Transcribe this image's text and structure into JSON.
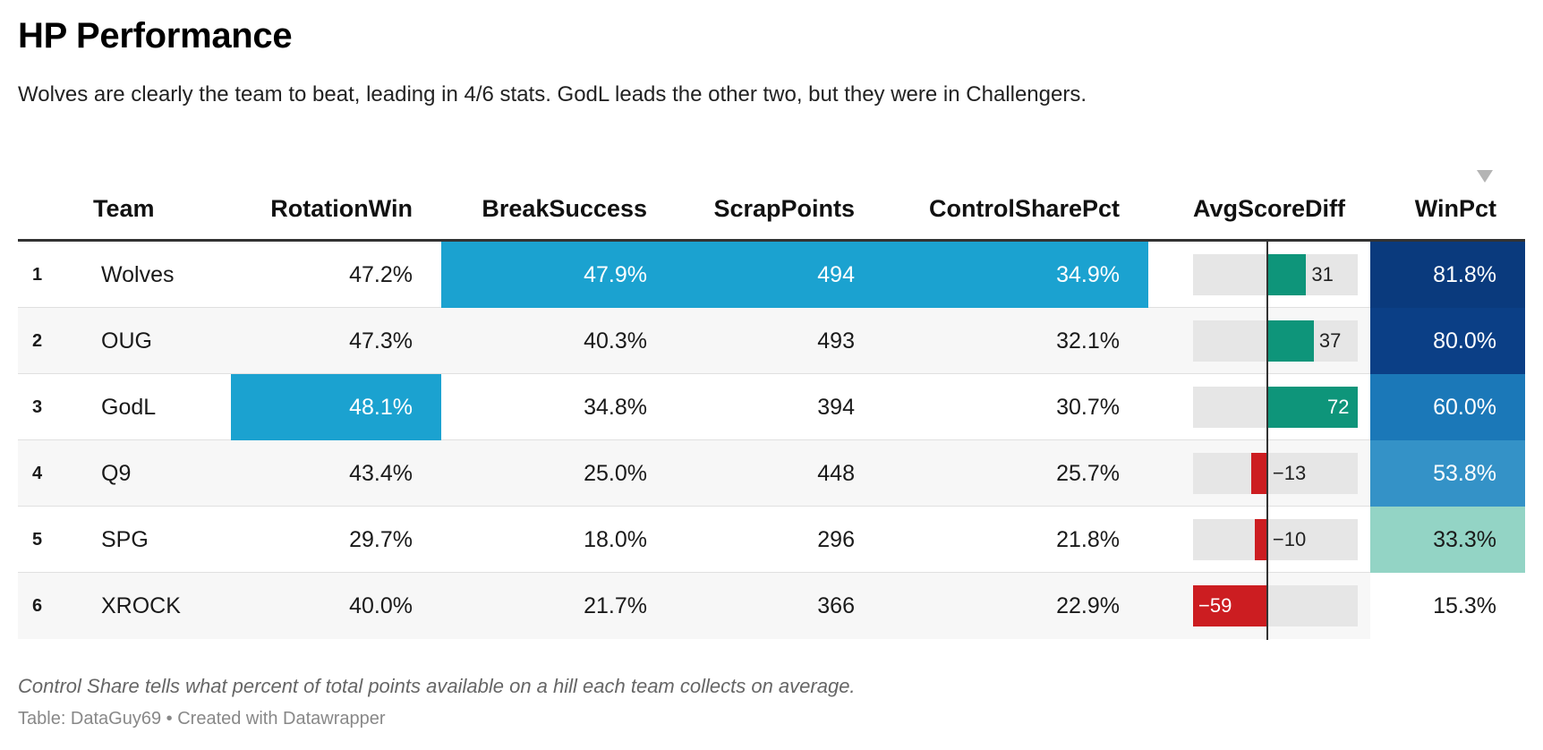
{
  "title": "HP Performance",
  "subtitle": "Wolves are clearly the team to beat, leading in 4/6 stats. GodL leads the other two, but they were in Challengers.",
  "columns": {
    "team": "Team",
    "rotation": "RotationWin",
    "break": "BreakSuccess",
    "scrap": "ScrapPoints",
    "control": "ControlSharePct",
    "diff": "AvgScoreDiff",
    "win": "WinPct"
  },
  "sort_icon": "sort-descending-triangle",
  "colors": {
    "highlight": "#1ba2d0",
    "positive": "#0e957a",
    "negative": "#cc1d21",
    "win_scale": [
      "#0a3a7d",
      "#0b3f86",
      "#1b78b8",
      "#3492c7",
      "#93d4c5",
      "#ffffff"
    ]
  },
  "chart_data": {
    "type": "table",
    "diff_range": [
      -59,
      72
    ],
    "rows": [
      {
        "rank": "1",
        "team": "Wolves",
        "rotation": "47.2%",
        "break": "47.9%",
        "scrap": "494",
        "control": "34.9%",
        "diff": 31,
        "diff_label": "31",
        "win": "81.8%",
        "win_value": 81.8,
        "highlight": [
          "break",
          "scrap",
          "control"
        ],
        "win_bg": "#0a3a7d",
        "win_fg": "#ffffff"
      },
      {
        "rank": "2",
        "team": "OUG",
        "rotation": "47.3%",
        "break": "40.3%",
        "scrap": "493",
        "control": "32.1%",
        "diff": 37,
        "diff_label": "37",
        "win": "80.0%",
        "win_value": 80.0,
        "highlight": [],
        "win_bg": "#0b3f86",
        "win_fg": "#ffffff"
      },
      {
        "rank": "3",
        "team": "GodL",
        "rotation": "48.1%",
        "break": "34.8%",
        "scrap": "394",
        "control": "30.7%",
        "diff": 72,
        "diff_label": "72",
        "win": "60.0%",
        "win_value": 60.0,
        "highlight": [
          "rotation"
        ],
        "win_bg": "#1b78b8",
        "win_fg": "#ffffff"
      },
      {
        "rank": "4",
        "team": "Q9",
        "rotation": "43.4%",
        "break": "25.0%",
        "scrap": "448",
        "control": "25.7%",
        "diff": -13,
        "diff_label": "−13",
        "win": "53.8%",
        "win_value": 53.8,
        "highlight": [],
        "win_bg": "#3492c7",
        "win_fg": "#ffffff"
      },
      {
        "rank": "5",
        "team": "SPG",
        "rotation": "29.7%",
        "break": "18.0%",
        "scrap": "296",
        "control": "21.8%",
        "diff": -10,
        "diff_label": "−10",
        "win": "33.3%",
        "win_value": 33.3,
        "highlight": [],
        "win_bg": "#93d4c5",
        "win_fg": "#1a1a1a"
      },
      {
        "rank": "6",
        "team": "XROCK",
        "rotation": "40.0%",
        "break": "21.7%",
        "scrap": "366",
        "control": "22.9%",
        "diff": -59,
        "diff_label": "−59",
        "win": "15.3%",
        "win_value": 15.3,
        "highlight": [],
        "win_bg": "#ffffff",
        "win_fg": "#1a1a1a"
      }
    ]
  },
  "note": "Control Share tells what percent of total points available on a hill each team collects on average.",
  "source": "Table: DataGuy69 • Created with Datawrapper"
}
